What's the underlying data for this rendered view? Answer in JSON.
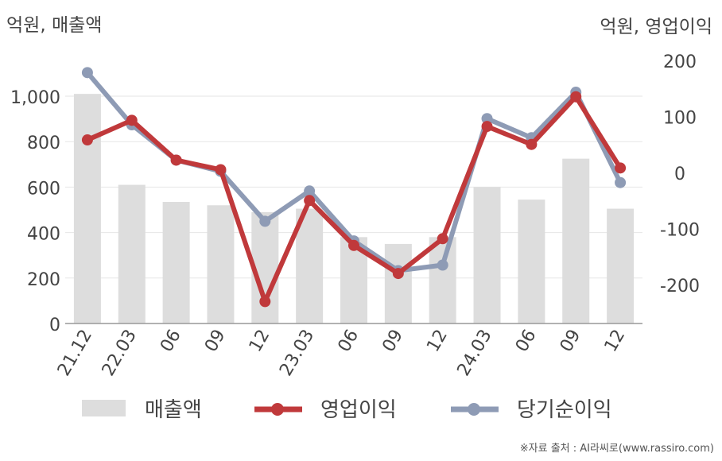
{
  "header": {
    "left_unit": "억원, 매출액",
    "right_unit": "억원, 영업이익"
  },
  "footer": {
    "source": "※자료 출처 : AI라씨로(www.rassiro.com)"
  },
  "chart_data": {
    "type": "bar",
    "categories": [
      "21.12",
      "22.03",
      "06",
      "09",
      "12",
      "23.03",
      "06",
      "09",
      "12",
      "24.03",
      "06",
      "09",
      "12"
    ],
    "series": [
      {
        "name": "매출액",
        "type": "bar",
        "axis": "left",
        "color": "#dddddd",
        "values": [
          1010,
          610,
          535,
          520,
          490,
          505,
          380,
          350,
          380,
          600,
          545,
          725,
          505
        ]
      },
      {
        "name": "영업이익",
        "type": "line",
        "axis": "right",
        "color": "#c0393b",
        "values": [
          58,
          93,
          22,
          5,
          -230,
          -50,
          -130,
          -180,
          -118,
          82,
          50,
          135,
          8
        ]
      },
      {
        "name": "당기순이익",
        "type": "line",
        "axis": "right",
        "color": "#8e9bb5",
        "values": [
          178,
          85,
          22,
          2,
          -87,
          -33,
          -122,
          -175,
          -165,
          96,
          62,
          143,
          -18
        ]
      }
    ],
    "left_axis": {
      "ticks": [
        "0",
        "200",
        "400",
        "600",
        "800",
        "1,000"
      ],
      "tick_values": [
        0,
        200,
        400,
        600,
        800,
        1000
      ],
      "range": [
        0,
        1100
      ]
    },
    "right_axis": {
      "ticks": [
        "-200",
        "-100",
        "0",
        "100",
        "200"
      ],
      "tick_values": [
        -200,
        -100,
        0,
        100,
        200
      ],
      "range": [
        -270,
        200
      ]
    },
    "grid": true,
    "legend_position": "bottom"
  }
}
